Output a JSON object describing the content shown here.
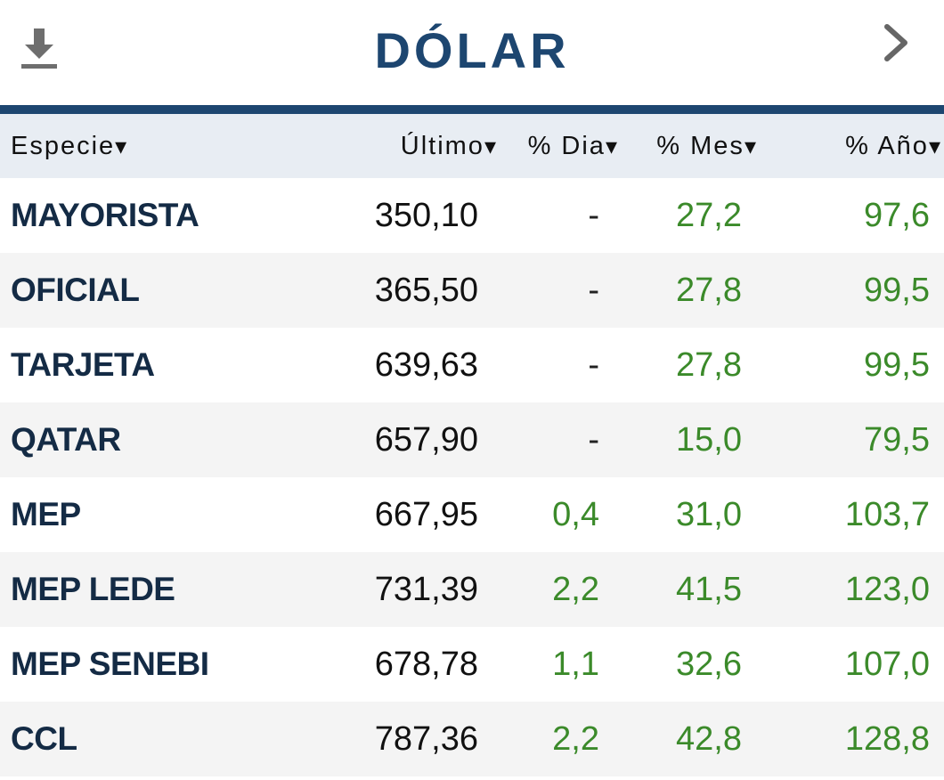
{
  "header": {
    "title": "DÓLAR",
    "download_icon": "download-icon",
    "next_icon": "chevron-right-icon",
    "accent_color": "#1d4670",
    "positive_color": "#3b8a2a"
  },
  "table": {
    "columns": [
      {
        "label": "Especie",
        "sort": "▾"
      },
      {
        "label": "Último",
        "sort": "▾"
      },
      {
        "label": "% Dia",
        "sort": "▾"
      },
      {
        "label": "% Mes",
        "sort": "▾"
      },
      {
        "label": "% Año",
        "sort": "▾"
      }
    ],
    "rows": [
      {
        "especie": "MAYORISTA",
        "ultimo": "350,10",
        "dia": "-",
        "mes": "27,2",
        "anio": "97,6"
      },
      {
        "especie": "OFICIAL",
        "ultimo": "365,50",
        "dia": "-",
        "mes": "27,8",
        "anio": "99,5"
      },
      {
        "especie": "TARJETA",
        "ultimo": "639,63",
        "dia": "-",
        "mes": "27,8",
        "anio": "99,5"
      },
      {
        "especie": "QATAR",
        "ultimo": "657,90",
        "dia": "-",
        "mes": "15,0",
        "anio": "79,5"
      },
      {
        "especie": "MEP",
        "ultimo": "667,95",
        "dia": "0,4",
        "mes": "31,0",
        "anio": "103,7"
      },
      {
        "especie": "MEP LEDE",
        "ultimo": "731,39",
        "dia": "2,2",
        "mes": "41,5",
        "anio": "123,0"
      },
      {
        "especie": "MEP SENEBI",
        "ultimo": "678,78",
        "dia": "1,1",
        "mes": "32,6",
        "anio": "107,0"
      },
      {
        "especie": "CCL",
        "ultimo": "787,36",
        "dia": "2,2",
        "mes": "42,8",
        "anio": "128,8"
      }
    ]
  }
}
